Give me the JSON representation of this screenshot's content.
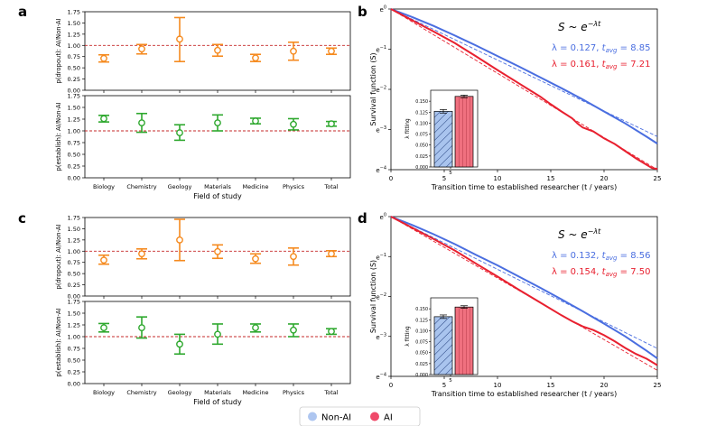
{
  "panel_letters": [
    "a",
    "b",
    "c",
    "d"
  ],
  "legend": {
    "items": [
      {
        "label": "Non-AI",
        "color": "#aec6f0"
      },
      {
        "label": "AI",
        "color": "#ef4a6a"
      }
    ]
  },
  "colors": {
    "dropout": "#f58a1f",
    "establish": "#2ea82e",
    "ref_line": "#c62828",
    "nonai_curve": "#4a6ee0",
    "ai_curve": "#e8202f",
    "nonai_bar": "#a9c4ee",
    "ai_bar": "#f0707f"
  },
  "chart_data": [
    {
      "id": "a-dropout",
      "type": "scatter",
      "panel": "a",
      "ylabel": "p(dropout): AI/Non-AI",
      "ylim": [
        0,
        1.75
      ],
      "yticks": [
        "0.00",
        "0.25",
        "0.50",
        "0.75",
        "1.00",
        "1.25",
        "1.50",
        "1.75"
      ],
      "reference_line": 1.0,
      "categories": [
        "Biology",
        "Chemistry",
        "Geology",
        "Materials",
        "Medicine",
        "Physics",
        "Total"
      ],
      "values": [
        0.71,
        0.92,
        1.14,
        0.89,
        0.72,
        0.87,
        0.87
      ],
      "lower": [
        0.63,
        0.81,
        0.64,
        0.76,
        0.64,
        0.67,
        0.8
      ],
      "upper": [
        0.79,
        1.02,
        1.62,
        1.02,
        0.8,
        1.07,
        0.94
      ]
    },
    {
      "id": "a-establish",
      "type": "scatter",
      "panel": "a",
      "ylabel": "p(establish): AI/Non-AI",
      "xlabel": "Field of study",
      "ylim": [
        0,
        1.75
      ],
      "yticks": [
        "0.00",
        "0.25",
        "0.50",
        "0.75",
        "1.00",
        "1.25",
        "1.50",
        "1.75"
      ],
      "reference_line": 1.0,
      "categories": [
        "Biology",
        "Chemistry",
        "Geology",
        "Materials",
        "Medicine",
        "Physics",
        "Total"
      ],
      "values": [
        1.26,
        1.17,
        0.96,
        1.17,
        1.21,
        1.14,
        1.15
      ],
      "lower": [
        1.19,
        0.97,
        0.8,
        1.0,
        1.15,
        1.02,
        1.1
      ],
      "upper": [
        1.33,
        1.37,
        1.13,
        1.34,
        1.27,
        1.26,
        1.2
      ]
    },
    {
      "id": "b-survival",
      "type": "line",
      "panel": "b",
      "xlabel": "Transition time to established researcher (t / years)",
      "ylabel": "Survival function (S)",
      "xlim": [
        0,
        25
      ],
      "xticks": [
        "0",
        "5",
        "10",
        "15",
        "20",
        "25"
      ],
      "ylim_exponent": [
        -4,
        0
      ],
      "yticks": [
        "e0",
        "e−1",
        "e−2",
        "e−3",
        "e−4"
      ],
      "formula": "S ~ e^(−λt)",
      "series": [
        {
          "name": "Non-AI",
          "lambda": 0.127,
          "t_avg": 8.85,
          "annotation": "λ = 0.127, tavg = 8.85",
          "x": [
            0,
            2,
            4,
            6,
            8,
            10,
            12,
            14,
            16,
            18,
            20,
            22,
            24,
            25
          ],
          "logS": [
            0,
            -0.2,
            -0.42,
            -0.66,
            -0.91,
            -1.17,
            -1.43,
            -1.7,
            -1.97,
            -2.25,
            -2.55,
            -2.85,
            -3.18,
            -3.35
          ]
        },
        {
          "name": "AI",
          "lambda": 0.161,
          "t_avg": 7.21,
          "annotation": "λ = 0.161, tavg = 7.21",
          "x": [
            0,
            2,
            4,
            6,
            8,
            10,
            12,
            14,
            15,
            16,
            17,
            17.5,
            18,
            19,
            20,
            21,
            22,
            23,
            24,
            24.5,
            25
          ],
          "logS": [
            0,
            -0.28,
            -0.56,
            -0.85,
            -1.18,
            -1.52,
            -1.85,
            -2.18,
            -2.37,
            -2.55,
            -2.72,
            -2.85,
            -2.95,
            -3.05,
            -3.22,
            -3.36,
            -3.54,
            -3.72,
            -3.88,
            -3.96,
            -3.98
          ]
        }
      ],
      "inset": {
        "type": "bar",
        "ylabel": "λ fitting",
        "ylim": [
          0,
          0.175
        ],
        "yticks": [
          "0.000",
          "0.025",
          "0.050",
          "0.075",
          "0.100",
          "0.125",
          "0.150"
        ],
        "xticks": [
          "5"
        ],
        "categories": [
          "Non-AI",
          "AI"
        ],
        "values": [
          0.127,
          0.161
        ],
        "errors": [
          0.004,
          0.003
        ]
      }
    },
    {
      "id": "c-dropout",
      "type": "scatter",
      "panel": "c",
      "ylabel": "p(dropout): AI/Non-AI",
      "ylim": [
        0,
        1.75
      ],
      "yticks": [
        "0.00",
        "0.25",
        "0.50",
        "0.75",
        "1.00",
        "1.25",
        "1.50",
        "1.75"
      ],
      "reference_line": 1.0,
      "categories": [
        "Biology",
        "Chemistry",
        "Geology",
        "Materials",
        "Medicine",
        "Physics",
        "Total"
      ],
      "values": [
        0.8,
        0.94,
        1.25,
        0.99,
        0.83,
        0.88,
        0.94
      ],
      "lower": [
        0.71,
        0.83,
        0.79,
        0.84,
        0.73,
        0.69,
        0.88
      ],
      "upper": [
        0.91,
        1.05,
        1.71,
        1.14,
        0.94,
        1.07,
        1.01
      ]
    },
    {
      "id": "c-establish",
      "type": "scatter",
      "panel": "c",
      "ylabel": "p(establish): AI/Non-AI",
      "xlabel": "Field of study",
      "ylim": [
        0,
        1.75
      ],
      "yticks": [
        "0.00",
        "0.25",
        "0.50",
        "0.75",
        "1.00",
        "1.25",
        "1.50",
        "1.75"
      ],
      "reference_line": 1.0,
      "categories": [
        "Biology",
        "Chemistry",
        "Geology",
        "Materials",
        "Medicine",
        "Physics",
        "Total"
      ],
      "values": [
        1.19,
        1.19,
        0.84,
        1.05,
        1.19,
        1.14,
        1.11
      ],
      "lower": [
        1.1,
        0.97,
        0.63,
        0.84,
        1.1,
        1.0,
        1.05
      ],
      "upper": [
        1.28,
        1.42,
        1.05,
        1.27,
        1.27,
        1.27,
        1.17
      ]
    },
    {
      "id": "d-survival",
      "type": "line",
      "panel": "d",
      "xlabel": "Transition time to established researcher (t / years)",
      "ylabel": "Survival function (S)",
      "xlim": [
        0,
        25
      ],
      "xticks": [
        "0",
        "5",
        "10",
        "15",
        "20",
        "25"
      ],
      "ylim_exponent": [
        -4,
        0
      ],
      "yticks": [
        "e0",
        "e−1",
        "e−2",
        "e−3",
        "e−4"
      ],
      "formula": "S ~ e^(−λt)",
      "series": [
        {
          "name": "Non-AI",
          "lambda": 0.132,
          "t_avg": 8.56,
          "annotation": "λ = 0.132, tavg = 8.56",
          "x": [
            0,
            2,
            4,
            6,
            8,
            10,
            12,
            14,
            16,
            18,
            20,
            22,
            24,
            25
          ],
          "logS": [
            0,
            -0.21,
            -0.44,
            -0.69,
            -0.96,
            -1.22,
            -1.5,
            -1.78,
            -2.07,
            -2.37,
            -2.68,
            -3.0,
            -3.36,
            -3.55
          ]
        },
        {
          "name": "AI",
          "lambda": 0.154,
          "t_avg": 7.5,
          "annotation": "λ = 0.154, tavg = 7.50",
          "x": [
            0,
            2,
            4,
            6,
            8,
            10,
            12,
            14,
            16,
            17,
            18,
            19,
            20,
            21,
            22,
            23,
            24,
            25
          ],
          "logS": [
            0,
            -0.28,
            -0.56,
            -0.85,
            -1.18,
            -1.5,
            -1.83,
            -2.15,
            -2.47,
            -2.62,
            -2.75,
            -2.84,
            -2.97,
            -3.12,
            -3.29,
            -3.44,
            -3.56,
            -3.72
          ]
        }
      ],
      "inset": {
        "type": "bar",
        "ylabel": "λ fitting",
        "ylim": [
          0,
          0.175
        ],
        "yticks": [
          "0.000",
          "0.025",
          "0.050",
          "0.075",
          "0.100",
          "0.125",
          "0.150"
        ],
        "xticks": [
          "5"
        ],
        "categories": [
          "Non-AI",
          "AI"
        ],
        "values": [
          0.132,
          0.154
        ],
        "errors": [
          0.004,
          0.003
        ]
      }
    }
  ]
}
